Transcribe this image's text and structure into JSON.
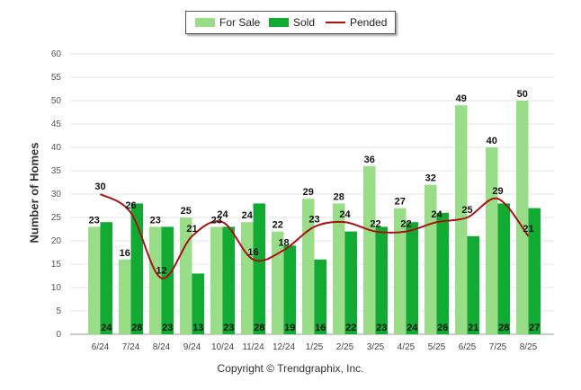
{
  "legend": {
    "for_sale": "For Sale",
    "sold": "Sold",
    "pended": "Pended"
  },
  "footer": "Copyright © Trendgraphix, Inc.",
  "colors": {
    "for_sale": "#99dd88",
    "sold": "#11aa33",
    "pended": "#aa1111"
  },
  "chart_data": {
    "type": "bar",
    "title": "",
    "xlabel": "",
    "ylabel": "Number of Homes",
    "ylim": [
      0,
      60
    ],
    "yticks": [
      0,
      5,
      10,
      15,
      20,
      25,
      30,
      35,
      40,
      45,
      50,
      55,
      60
    ],
    "grid": true,
    "legend_position": "top-center",
    "categories": [
      "6/24",
      "7/24",
      "8/24",
      "9/24",
      "10/24",
      "11/24",
      "12/24",
      "1/25",
      "2/25",
      "3/25",
      "4/25",
      "5/25",
      "6/25",
      "7/25",
      "8/25"
    ],
    "series": [
      {
        "name": "For Sale",
        "type": "bar",
        "values": [
          23,
          16,
          23,
          25,
          23,
          24,
          22,
          29,
          28,
          36,
          27,
          32,
          49,
          40,
          50
        ]
      },
      {
        "name": "Sold",
        "type": "bar",
        "values": [
          24,
          28,
          23,
          13,
          23,
          28,
          19,
          16,
          22,
          23,
          24,
          26,
          21,
          28,
          27
        ]
      },
      {
        "name": "Pended",
        "type": "line",
        "values": [
          30,
          26,
          12,
          21,
          24,
          16,
          18,
          23,
          24,
          22,
          22,
          24,
          25,
          29,
          21
        ]
      }
    ]
  }
}
